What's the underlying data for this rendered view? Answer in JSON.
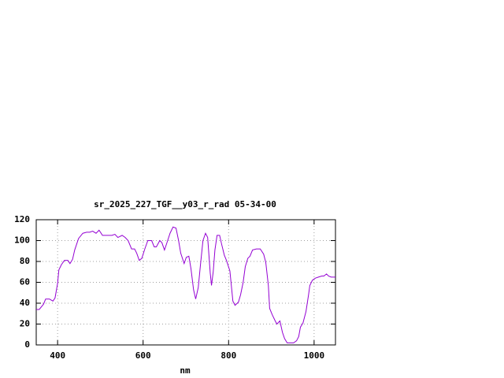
{
  "chart_data": {
    "type": "line",
    "title": "sr_2025_227_TGF__y03_r_rad 05-34-00",
    "xlabel": "nm",
    "x": [
      350,
      357,
      367,
      372,
      381,
      389,
      394,
      400,
      403,
      409,
      416,
      424,
      429,
      435,
      440,
      449,
      459,
      468,
      475,
      482,
      490,
      497,
      505,
      512,
      519,
      527,
      534,
      541,
      551,
      558,
      565,
      573,
      580,
      585,
      591,
      597,
      604,
      611,
      620,
      626,
      631,
      639,
      644,
      650,
      655,
      663,
      670,
      677,
      683,
      688,
      696,
      701,
      707,
      712,
      718,
      723,
      729,
      734,
      740,
      746,
      751,
      757,
      760,
      764,
      768,
      773,
      779,
      784,
      790,
      795,
      803,
      810,
      815,
      823,
      828,
      834,
      839,
      845,
      850,
      856,
      865,
      874,
      882,
      887,
      893,
      896,
      902,
      909,
      913,
      920,
      926,
      931,
      937,
      944,
      952,
      959,
      964,
      968,
      974,
      981,
      987,
      990,
      996,
      1003,
      1010,
      1018,
      1023,
      1029,
      1034,
      1040,
      1050
    ],
    "series": [
      {
        "name": "sr_2025_227_TGF__y03_r_rad 05-34-00",
        "color": "#9400d3",
        "values": [
          34,
          34,
          39,
          44,
          44,
          42,
          45,
          59,
          72,
          77,
          81,
          81,
          78,
          82,
          91,
          102,
          107,
          108,
          108,
          109,
          107,
          110,
          105,
          105,
          105,
          105,
          106,
          103,
          105,
          103,
          100,
          92,
          92,
          88,
          81,
          83,
          92,
          100,
          100,
          94,
          94,
          100,
          98,
          91,
          97,
          107,
          113,
          112,
          100,
          88,
          78,
          84,
          85,
          73,
          53,
          44,
          55,
          76,
          100,
          107,
          103,
          69,
          57,
          70,
          91,
          105,
          105,
          96,
          86,
          81,
          71,
          42,
          38,
          41,
          48,
          60,
          75,
          83,
          85,
          91,
          92,
          92,
          87,
          79,
          57,
          35,
          29,
          23,
          20,
          23,
          12,
          6,
          2,
          2,
          2,
          4,
          8,
          17,
          21,
          32,
          48,
          57,
          62,
          64,
          65,
          66,
          66,
          68,
          66,
          65,
          65
        ]
      }
    ],
    "xlim": [
      350,
      1050
    ],
    "xticks": [
      400,
      600,
      800,
      1000
    ],
    "ylim": [
      0,
      120
    ],
    "yticks": [
      0,
      20,
      40,
      60,
      80,
      100,
      120
    ],
    "grid": true
  }
}
